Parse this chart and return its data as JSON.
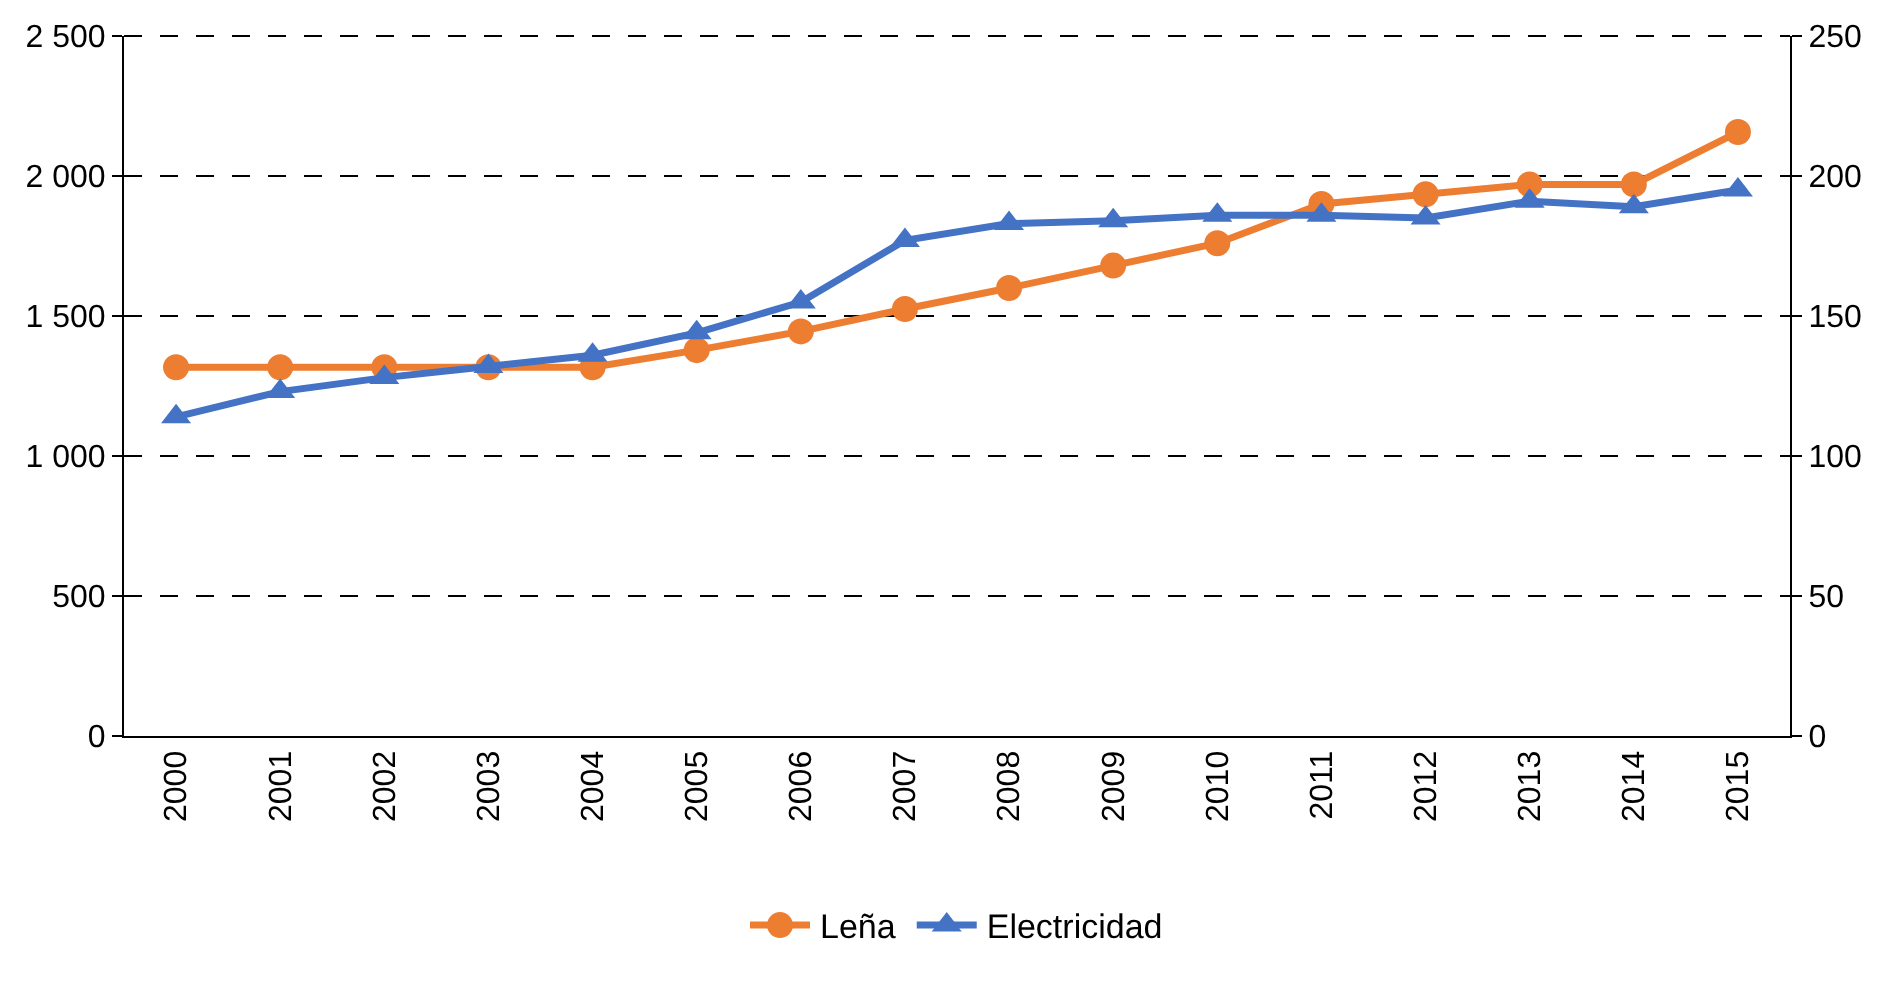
{
  "chart_data": {
    "type": "line",
    "categories": [
      "2000",
      "2001",
      "2002",
      "2003",
      "2004",
      "2005",
      "2006",
      "2007",
      "2008",
      "2009",
      "2010",
      "2011",
      "2012",
      "2013",
      "2014",
      "2015"
    ],
    "series": [
      {
        "name": "Leña",
        "color": "#ed7d31",
        "marker": "circle",
        "values": [
          1317,
          1317,
          1317,
          1317,
          1317,
          1378,
          1445,
          1525,
          1600,
          1680,
          1760,
          1900,
          1935,
          1970,
          1970,
          2157
        ]
      },
      {
        "name": "Electricidad",
        "color": "#4472c4",
        "marker": "triangle",
        "axis": "y2",
        "values": [
          114,
          123,
          128,
          132,
          136,
          144,
          155,
          177,
          183,
          184,
          186,
          186,
          185,
          191,
          189,
          195
        ]
      }
    ],
    "ylim": [
      0,
      2500
    ],
    "yticks": [
      0,
      {
        "value": 500,
        "label": "500"
      },
      {
        "value": 1000,
        "label": "1 000"
      },
      {
        "value": 1500,
        "label": "1 500"
      },
      {
        "value": 2000,
        "label": "2 000"
      },
      {
        "value": 2500,
        "label": "2 500"
      }
    ],
    "y2lim": [
      0,
      250
    ],
    "y2ticks": [
      0,
      50,
      100,
      150,
      200,
      250
    ],
    "grid": "y",
    "legend": "bottom",
    "line_style": "solid"
  }
}
